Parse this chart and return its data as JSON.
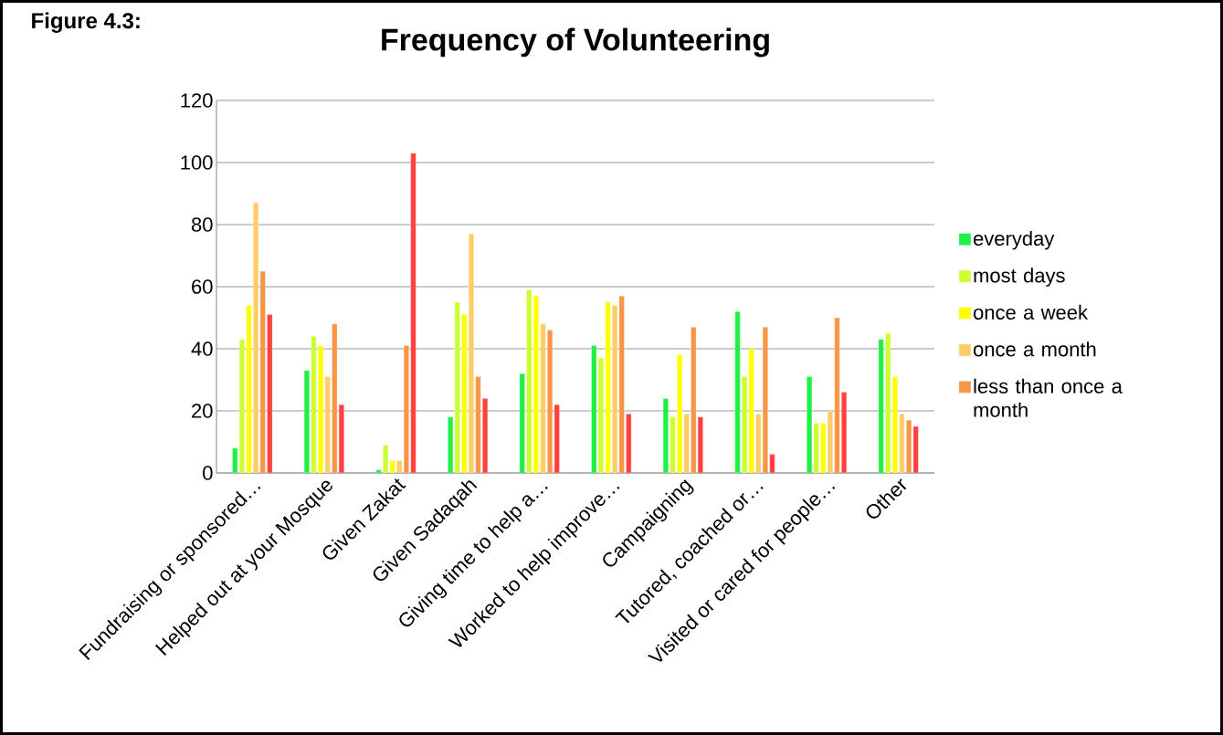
{
  "chart_data": {
    "type": "bar",
    "title": "Frequency of Volunteering",
    "annotations": [
      "Figure 4.3:"
    ],
    "categories": [
      "Fundraising or sponsored…",
      "Helped out at your Mosque",
      "Given Zakat",
      "Given Sadaqah",
      "Giving time to help a…",
      "Worked to help improve…",
      "Campaigning",
      "Tutored, coached or…",
      "Visited or cared for people…",
      "Other"
    ],
    "series": [
      {
        "name": "everyday",
        "color": "#1ef046",
        "values": [
          8,
          33,
          1,
          18,
          32,
          41,
          24,
          52,
          31,
          43
        ]
      },
      {
        "name": "most days",
        "color": "#ccff33",
        "values": [
          43,
          44,
          9,
          55,
          59,
          37,
          18,
          31,
          16,
          45
        ]
      },
      {
        "name": "once a week",
        "color": "#ffff00",
        "values": [
          54,
          41,
          4,
          51,
          57,
          55,
          38,
          40,
          16,
          31
        ]
      },
      {
        "name": "once a month",
        "color": "#ffcc66",
        "values": [
          87,
          31,
          4,
          77,
          48,
          54,
          19,
          19,
          20,
          19
        ]
      },
      {
        "name": "less than once a month",
        "color": "#f79646",
        "values": [
          65,
          48,
          41,
          31,
          46,
          57,
          47,
          47,
          50,
          17
        ]
      },
      {
        "color": "#ff4040",
        "values": [
          51,
          22,
          103,
          24,
          22,
          19,
          18,
          6,
          26,
          15
        ]
      }
    ],
    "ylim": [
      0,
      120
    ],
    "yticks": [
      0,
      20,
      40,
      60,
      80,
      100,
      120
    ],
    "grid": "y",
    "legend": "right"
  }
}
